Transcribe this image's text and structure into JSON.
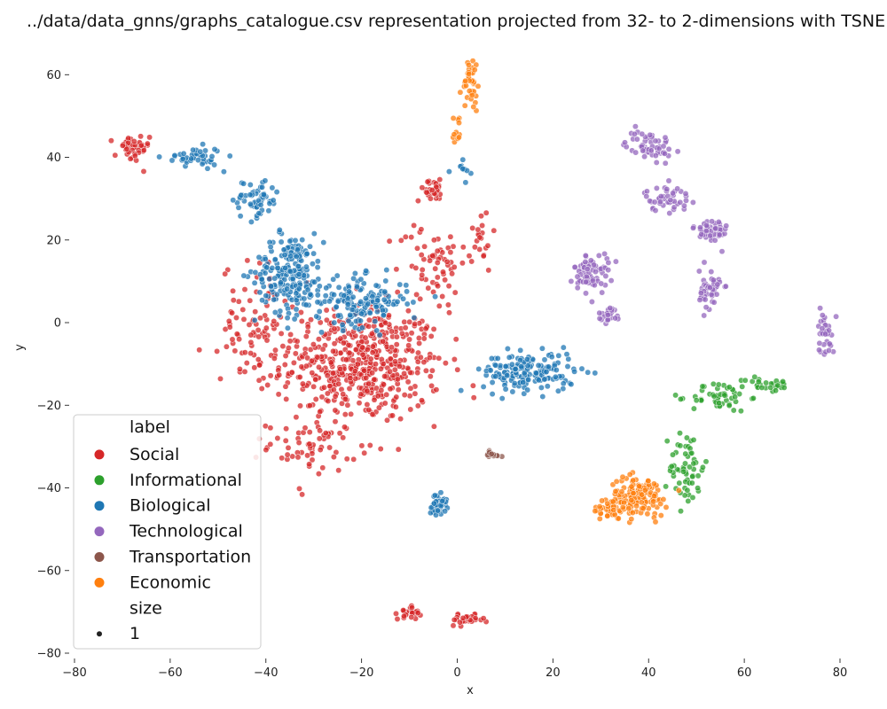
{
  "chart_data": {
    "type": "scatter",
    "title": "../data/data_gnns/graphs_catalogue.csv representation projected from 32- to 2-dimensions with TSNE",
    "xlabel": "x",
    "ylabel": "y",
    "xlim": [
      -80,
      80
    ],
    "ylim": [
      -80,
      68
    ],
    "xticks": [
      -80,
      -60,
      -40,
      -20,
      0,
      20,
      40,
      60,
      80
    ],
    "yticks": [
      -80,
      -60,
      -40,
      -20,
      0,
      20,
      40,
      60
    ],
    "tick_labels_x": [
      "−80",
      "−60",
      "−40",
      "−20",
      "0",
      "20",
      "40",
      "60",
      "80"
    ],
    "tick_labels_y": [
      "−80",
      "−60",
      "−40",
      "−20",
      "0",
      "20",
      "40",
      "60"
    ],
    "grid": false,
    "legend": {
      "placement": "lower-left",
      "hue_title": "label",
      "size_title": "size",
      "size_entries": [
        "1"
      ]
    },
    "series": [
      {
        "name": "Social",
        "color": "#d62728",
        "clusters": [
          {
            "center": [
              -20,
              -10
            ],
            "spread": [
              14,
              12
            ],
            "count": 520
          },
          {
            "center": [
              -42,
              0
            ],
            "spread": [
              6,
              12
            ],
            "count": 90
          },
          {
            "center": [
              -30,
              -30
            ],
            "spread": [
              8,
              5
            ],
            "count": 60
          },
          {
            "center": [
              -68,
              42
            ],
            "spread": [
              3,
              3
            ],
            "count": 45
          },
          {
            "center": [
              -5,
              32
            ],
            "spread": [
              3,
              2
            ],
            "count": 30
          },
          {
            "center": [
              -10,
              -70
            ],
            "spread": [
              2,
              1.5
            ],
            "count": 25
          },
          {
            "center": [
              2,
              -72
            ],
            "spread": [
              3,
              1
            ],
            "count": 30
          },
          {
            "center": [
              -5,
              15
            ],
            "spread": [
              6,
              8
            ],
            "count": 60
          },
          {
            "center": [
              5,
              20
            ],
            "spread": [
              2,
              6
            ],
            "count": 20
          }
        ]
      },
      {
        "name": "Informational",
        "color": "#2ca02c",
        "clusters": [
          {
            "center": [
              48,
              -35
            ],
            "spread": [
              3,
              8
            ],
            "count": 60
          },
          {
            "center": [
              55,
              -18
            ],
            "spread": [
              5,
              3
            ],
            "count": 50
          },
          {
            "center": [
              65,
              -15
            ],
            "spread": [
              4,
              1.5
            ],
            "count": 30
          }
        ]
      },
      {
        "name": "Biological",
        "color": "#1f77b4",
        "clusters": [
          {
            "center": [
              -35,
              12
            ],
            "spread": [
              6,
              8
            ],
            "count": 210
          },
          {
            "center": [
              -20,
              5
            ],
            "spread": [
              8,
              5
            ],
            "count": 160
          },
          {
            "center": [
              -42,
              30
            ],
            "spread": [
              4,
              4
            ],
            "count": 60
          },
          {
            "center": [
              -55,
              40
            ],
            "spread": [
              5,
              2
            ],
            "count": 45
          },
          {
            "center": [
              15,
              -12
            ],
            "spread": [
              8,
              4
            ],
            "count": 170
          },
          {
            "center": [
              -4,
              -44
            ],
            "spread": [
              1.5,
              2
            ],
            "count": 45
          },
          {
            "center": [
              1,
              37
            ],
            "spread": [
              1.5,
              3
            ],
            "count": 12
          }
        ]
      },
      {
        "name": "Technological",
        "color": "#9467bd",
        "clusters": [
          {
            "center": [
              40,
              43
            ],
            "spread": [
              4,
              3
            ],
            "count": 60
          },
          {
            "center": [
              44,
              30
            ],
            "spread": [
              4,
              2.5
            ],
            "count": 45
          },
          {
            "center": [
              53,
              22
            ],
            "spread": [
              3,
              3
            ],
            "count": 50
          },
          {
            "center": [
              53,
              8
            ],
            "spread": [
              2,
              4
            ],
            "count": 50
          },
          {
            "center": [
              28,
              12
            ],
            "spread": [
              3,
              4
            ],
            "count": 70
          },
          {
            "center": [
              32,
              2
            ],
            "spread": [
              2,
              1.5
            ],
            "count": 25
          },
          {
            "center": [
              77,
              -2
            ],
            "spread": [
              1.5,
              5
            ],
            "count": 35
          }
        ]
      },
      {
        "name": "Transportation",
        "color": "#8c564b",
        "clusters": [
          {
            "center": [
              7,
              -32
            ],
            "spread": [
              2,
              1
            ],
            "count": 14
          }
        ]
      },
      {
        "name": "Economic",
        "color": "#ff7f0e",
        "clusters": [
          {
            "center": [
              38,
              -42
            ],
            "spread": [
              5,
              4
            ],
            "count": 130
          },
          {
            "center": [
              32,
              -45
            ],
            "spread": [
              3,
              2
            ],
            "count": 40
          },
          {
            "center": [
              3,
              58
            ],
            "spread": [
              1.5,
              6
            ],
            "count": 40
          },
          {
            "center": [
              0,
              47
            ],
            "spread": [
              0.8,
              5
            ],
            "count": 12
          }
        ]
      }
    ]
  }
}
